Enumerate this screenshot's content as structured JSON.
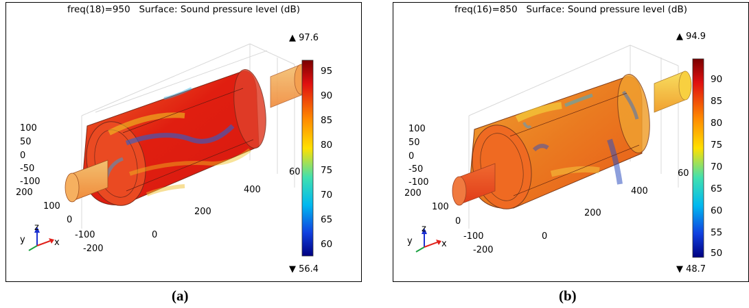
{
  "panels": [
    {
      "id": "a",
      "title": "freq(18)=950   Surface: Sound pressure level (dB)",
      "max_label": "▲ 97.6",
      "min_label": "▼ 56.4",
      "colorbar_ticks": [
        "95",
        "90",
        "85",
        "80",
        "75",
        "70",
        "65",
        "60"
      ],
      "z_ticks": [
        "100",
        "50",
        "0",
        "-50",
        "-100"
      ],
      "y_ticks": [
        "200",
        "100",
        "0",
        "-100",
        "-200"
      ],
      "x_ticks": [
        "0",
        "200",
        "400",
        "60"
      ],
      "caption": "(a)"
    },
    {
      "id": "b",
      "title": "freq(16)=850   Surface: Sound pressure level (dB)",
      "max_label": "▲ 94.9",
      "min_label": "▼ 48.7",
      "colorbar_ticks": [
        "90",
        "85",
        "80",
        "75",
        "70",
        "65",
        "60",
        "55",
        "50"
      ],
      "z_ticks": [
        "100",
        "50",
        "0",
        "-50",
        "-100"
      ],
      "y_ticks": [
        "200",
        "100",
        "0",
        "-100",
        "-200"
      ],
      "x_ticks": [
        "0",
        "200",
        "400",
        "60"
      ],
      "caption": "(b)"
    }
  ],
  "triad": {
    "x": "x",
    "y": "y",
    "z": "z"
  },
  "colors": {
    "x_axis": "#e0201a",
    "y_axis": "#1aa040",
    "z_axis": "#1a2fd0"
  }
}
